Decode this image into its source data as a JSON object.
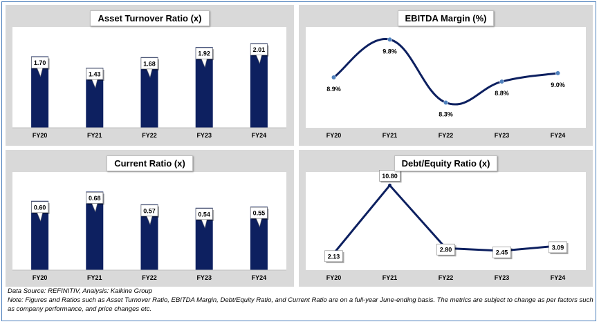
{
  "colors": {
    "bar": "#0d2060",
    "line": "#0d2060",
    "marker": "#4f81bd",
    "panel_bg": "#d9d9d9",
    "plot_bg": "#ffffff"
  },
  "chart_data": [
    {
      "id": "asset-turnover",
      "type": "bar",
      "title": "Asset Turnover Ratio (x)",
      "categories": [
        "FY20",
        "FY21",
        "FY22",
        "FY23",
        "FY24"
      ],
      "values": [
        1.7,
        1.43,
        1.68,
        1.92,
        2.01
      ],
      "labels": [
        "1.70",
        "1.43",
        "1.68",
        "1.92",
        "2.01"
      ],
      "ylim": [
        0,
        2.4
      ],
      "grid": false
    },
    {
      "id": "ebitda-margin",
      "type": "line",
      "title": "EBITDA Margin (%)",
      "categories": [
        "FY20",
        "FY21",
        "FY22",
        "FY23",
        "FY24"
      ],
      "values": [
        8.9,
        9.8,
        8.3,
        8.8,
        9.0
      ],
      "labels": [
        "8.9%",
        "9.8%",
        "8.3%",
        "8.8%",
        "9.0%"
      ],
      "smooth": true,
      "ylim": [
        7.7,
        10.1
      ],
      "grid": false
    },
    {
      "id": "current-ratio",
      "type": "bar",
      "title": "Current Ratio (x)",
      "categories": [
        "FY20",
        "FY21",
        "FY22",
        "FY23",
        "FY24"
      ],
      "values": [
        0.6,
        0.68,
        0.57,
        0.54,
        0.55
      ],
      "labels": [
        "0.60",
        "0.68",
        "0.57",
        "0.54",
        "0.55"
      ],
      "ylim": [
        0,
        0.85
      ],
      "grid": false
    },
    {
      "id": "debt-equity",
      "type": "line",
      "title": "Debt/Equity Ratio (x)",
      "categories": [
        "FY20",
        "FY21",
        "FY22",
        "FY23",
        "FY24"
      ],
      "values": [
        2.13,
        10.8,
        2.8,
        2.45,
        3.09
      ],
      "labels": [
        "2.13",
        "10.80",
        "2.80",
        "2.45",
        "3.09"
      ],
      "smooth": false,
      "ylim": [
        0,
        12.5
      ],
      "grid": false
    }
  ],
  "footer": {
    "source": "Data Source: REFINITIV, Analysis: Kalkine Group",
    "note": "Note: Figures and Ratios such as Asset Turnover Ratio, EBITDA Margin, Debt/Equity Ratio, and Current Ratio  are on a full-year June-ending basis. The metrics are subject to change as per factors such as company performance, and price changes etc."
  }
}
